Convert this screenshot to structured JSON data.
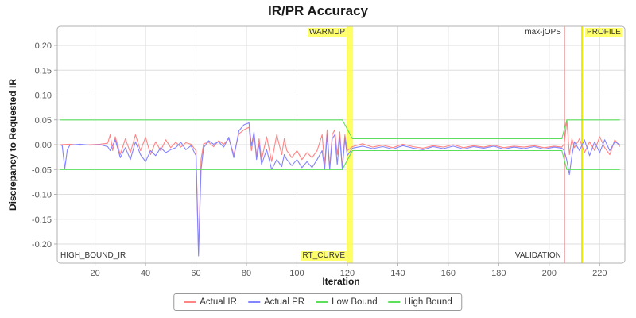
{
  "title": "IR/PR Accuracy",
  "chart_data": {
    "type": "line",
    "title": "IR/PR Accuracy",
    "xlabel": "Iteration",
    "ylabel": "Discrepancy to Requested IR",
    "xlim": [
      5,
      230
    ],
    "ylim": [
      -0.2384,
      0.2384
    ],
    "grid": true,
    "legend_position": "bottom",
    "x_ticks": [
      20,
      40,
      60,
      80,
      100,
      120,
      140,
      160,
      180,
      200,
      220
    ],
    "x_tick_labels": [
      "20",
      "40",
      "60",
      "80",
      "100",
      "120",
      "140",
      "160",
      "180",
      "200",
      "220"
    ],
    "y_ticks": [
      0.2,
      0.15,
      0.1,
      0.05,
      0.0,
      -0.05,
      -0.1,
      -0.15,
      -0.2
    ],
    "y_tick_labels": [
      "0.20",
      "0.15",
      "0.10",
      "0.05",
      "0.00",
      "-0.05",
      "-0.10",
      "-0.15",
      "-0.20"
    ],
    "colors": {
      "grid": "#dedede",
      "border": "#b0b0b0",
      "tick_text": "#5a5a5a",
      "band": "#ffff3c",
      "band_label_bg": "#ffff6e",
      "red_line": "#dd6666",
      "yellow_line": "#ebeb00"
    },
    "annotations": {
      "band": {
        "x": 121,
        "top_label": "WARMUP",
        "bottom_label": "RT_CURVE"
      },
      "vlines": [
        {
          "x": 206,
          "color": "#dd6666",
          "top_label": "max-jOPS",
          "bottom_label": "VALIDATION"
        },
        {
          "x": 213,
          "color": "#ebeb00",
          "top_label": "PROFILE"
        }
      ],
      "corner_label": "HIGH_BOUND_IR"
    },
    "series": [
      {
        "name": "Actual IR",
        "color": "#ff8484",
        "points": [
          [
            6,
            0
          ],
          [
            10,
            0.001
          ],
          [
            14,
            -0.001
          ],
          [
            18,
            0
          ],
          [
            22,
            0.001
          ],
          [
            25,
            0.003
          ],
          [
            26,
            0.02
          ],
          [
            27,
            -0.012
          ],
          [
            28,
            0.016
          ],
          [
            30,
            -0.02
          ],
          [
            32,
            0.012
          ],
          [
            34,
            -0.016
          ],
          [
            36,
            0.02
          ],
          [
            38,
            -0.012
          ],
          [
            40,
            0.015
          ],
          [
            42,
            -0.02
          ],
          [
            44,
            0.006
          ],
          [
            46,
            -0.012
          ],
          [
            48,
            0.01
          ],
          [
            50,
            -0.006
          ],
          [
            52,
            0.005
          ],
          [
            54,
            -0.005
          ],
          [
            56,
            0.004
          ],
          [
            58,
            0.001
          ],
          [
            60,
            -0.012
          ],
          [
            61,
            -0.215
          ],
          [
            62,
            -0.03
          ],
          [
            63,
            0.002
          ],
          [
            65,
            0.005
          ],
          [
            67,
            -0.004
          ],
          [
            69,
            0.008
          ],
          [
            71,
            0.001
          ],
          [
            73,
            0.012
          ],
          [
            75,
            -0.02
          ],
          [
            77,
            0.022
          ],
          [
            79,
            0.03
          ],
          [
            81,
            0.035
          ],
          [
            82,
            -0.012
          ],
          [
            83,
            0.022
          ],
          [
            84,
            -0.022
          ],
          [
            85,
            0.012
          ],
          [
            86,
            -0.03
          ],
          [
            88,
            0.016
          ],
          [
            90,
            -0.034
          ],
          [
            92,
            0.02
          ],
          [
            94,
            -0.02
          ],
          [
            95,
            0.012
          ],
          [
            96,
            -0.012
          ],
          [
            98,
            -0.026
          ],
          [
            100,
            -0.012
          ],
          [
            102,
            -0.03
          ],
          [
            104,
            -0.016
          ],
          [
            106,
            -0.026
          ],
          [
            108,
            -0.012
          ],
          [
            110,
            0.02
          ],
          [
            111,
            -0.04
          ],
          [
            112,
            0.03
          ],
          [
            113,
            -0.046
          ],
          [
            114,
            0.02
          ],
          [
            115,
            0.03
          ],
          [
            116,
            -0.02
          ],
          [
            117,
            0.026
          ],
          [
            118,
            -0.046
          ],
          [
            119,
            0.02
          ],
          [
            120,
            -0.012
          ],
          [
            122,
            -0.004
          ],
          [
            126,
            0.002
          ],
          [
            130,
            -0.005
          ],
          [
            134,
            -0.001
          ],
          [
            138,
            -0.006
          ],
          [
            142,
            0.001
          ],
          [
            146,
            -0.004
          ],
          [
            150,
            -0.007
          ],
          [
            154,
            -0.002
          ],
          [
            158,
            -0.005
          ],
          [
            162,
            0
          ],
          [
            166,
            -0.006
          ],
          [
            170,
            -0.002
          ],
          [
            174,
            -0.005
          ],
          [
            178,
            -0.001
          ],
          [
            182,
            -0.006
          ],
          [
            186,
            -0.003
          ],
          [
            190,
            -0.005
          ],
          [
            194,
            -0.002
          ],
          [
            198,
            -0.006
          ],
          [
            202,
            -0.003
          ],
          [
            205,
            -0.005
          ],
          [
            206,
            0.002
          ],
          [
            207,
            0.05
          ],
          [
            208,
            -0.02
          ],
          [
            209,
            0.012
          ],
          [
            210,
            -0.006
          ],
          [
            212,
            0.012
          ],
          [
            214,
            -0.016
          ],
          [
            216,
            0.006
          ],
          [
            218,
            -0.012
          ],
          [
            220,
            0.016
          ],
          [
            222,
            -0.006
          ],
          [
            224,
            -0.02
          ],
          [
            226,
            0.01
          ],
          [
            228,
            -0.004
          ]
        ]
      },
      {
        "name": "Actual PR",
        "color": "#8484ff",
        "points": [
          [
            6,
            0
          ],
          [
            7,
            -0.002
          ],
          [
            8,
            -0.048
          ],
          [
            9,
            -0.01
          ],
          [
            10,
            -0.001
          ],
          [
            14,
            0.001
          ],
          [
            18,
            -0.001
          ],
          [
            22,
            0
          ],
          [
            25,
            -0.004
          ],
          [
            26,
            -0.012
          ],
          [
            28,
            0.01
          ],
          [
            30,
            -0.026
          ],
          [
            32,
            -0.006
          ],
          [
            34,
            -0.03
          ],
          [
            36,
            0.006
          ],
          [
            38,
            -0.02
          ],
          [
            40,
            -0.034
          ],
          [
            42,
            -0.012
          ],
          [
            44,
            -0.022
          ],
          [
            46,
            -0.006
          ],
          [
            48,
            -0.016
          ],
          [
            50,
            -0.01
          ],
          [
            52,
            -0.006
          ],
          [
            54,
            0.005
          ],
          [
            56,
            -0.01
          ],
          [
            58,
            -0.002
          ],
          [
            60,
            -0.022
          ],
          [
            61,
            -0.224
          ],
          [
            62,
            -0.05
          ],
          [
            63,
            -0.006
          ],
          [
            65,
            0.008
          ],
          [
            67,
            0.001
          ],
          [
            69,
            0.006
          ],
          [
            71,
            -0.005
          ],
          [
            73,
            0.015
          ],
          [
            75,
            -0.026
          ],
          [
            77,
            0.028
          ],
          [
            79,
            0.04
          ],
          [
            81,
            0.044
          ],
          [
            82,
            -0.002
          ],
          [
            83,
            0.026
          ],
          [
            84,
            -0.03
          ],
          [
            85,
            0.002
          ],
          [
            86,
            -0.04
          ],
          [
            88,
            -0.01
          ],
          [
            90,
            -0.05
          ],
          [
            92,
            -0.03
          ],
          [
            94,
            -0.044
          ],
          [
            95,
            -0.02
          ],
          [
            96,
            -0.03
          ],
          [
            98,
            -0.042
          ],
          [
            100,
            -0.03
          ],
          [
            102,
            -0.046
          ],
          [
            104,
            -0.034
          ],
          [
            106,
            -0.046
          ],
          [
            108,
            -0.03
          ],
          [
            110,
            -0.012
          ],
          [
            111,
            -0.05
          ],
          [
            112,
            0.02
          ],
          [
            113,
            -0.05
          ],
          [
            114,
            0.012
          ],
          [
            115,
            0.02
          ],
          [
            116,
            -0.04
          ],
          [
            117,
            0.016
          ],
          [
            118,
            -0.05
          ],
          [
            119,
            0.012
          ],
          [
            120,
            -0.022
          ],
          [
            122,
            -0.007
          ],
          [
            126,
            -0.003
          ],
          [
            130,
            -0.008
          ],
          [
            134,
            -0.004
          ],
          [
            138,
            -0.009
          ],
          [
            142,
            -0.002
          ],
          [
            146,
            -0.007
          ],
          [
            150,
            -0.01
          ],
          [
            154,
            -0.004
          ],
          [
            158,
            -0.008
          ],
          [
            162,
            -0.003
          ],
          [
            166,
            -0.009
          ],
          [
            170,
            -0.004
          ],
          [
            174,
            -0.007
          ],
          [
            178,
            -0.003
          ],
          [
            182,
            -0.009
          ],
          [
            186,
            -0.005
          ],
          [
            190,
            -0.008
          ],
          [
            194,
            -0.004
          ],
          [
            198,
            -0.009
          ],
          [
            202,
            -0.005
          ],
          [
            205,
            -0.007
          ],
          [
            206,
            -0.012
          ],
          [
            207,
            -0.032
          ],
          [
            208,
            -0.06
          ],
          [
            209,
            -0.022
          ],
          [
            210,
            0.006
          ],
          [
            212,
            -0.012
          ],
          [
            214,
            0.01
          ],
          [
            216,
            -0.022
          ],
          [
            218,
            0.006
          ],
          [
            220,
            -0.016
          ],
          [
            222,
            0.01
          ],
          [
            224,
            -0.012
          ],
          [
            226,
            0.006
          ],
          [
            228,
            0
          ]
        ]
      },
      {
        "name": "Low Bound",
        "color": "#5ce05c",
        "points": [
          [
            6,
            -0.05
          ],
          [
            118,
            -0.05
          ],
          [
            122,
            -0.012
          ],
          [
            205,
            -0.012
          ],
          [
            207,
            -0.05
          ],
          [
            228,
            -0.05
          ]
        ]
      },
      {
        "name": "High Bound",
        "color": "#5ce05c",
        "points": [
          [
            6,
            0.05
          ],
          [
            118,
            0.05
          ],
          [
            122,
            0.012
          ],
          [
            205,
            0.012
          ],
          [
            207,
            0.05
          ],
          [
            228,
            0.05
          ]
        ]
      }
    ]
  },
  "legend": {
    "items": [
      {
        "label": "Actual IR",
        "color": "#ff8484"
      },
      {
        "label": "Actual PR",
        "color": "#8484ff"
      },
      {
        "label": "Low Bound",
        "color": "#5ce05c"
      },
      {
        "label": "High Bound",
        "color": "#5ce05c"
      }
    ]
  }
}
